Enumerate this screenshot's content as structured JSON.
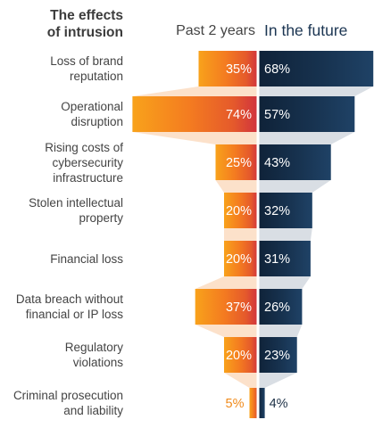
{
  "header": {
    "title": "The effects\nof intrusion",
    "left_label": "Past 2 years",
    "right_label": "In the future"
  },
  "colors": {
    "past_gradient": [
      "#f7a51c",
      "#f47d20",
      "#e9562b",
      "#d4323f"
    ],
    "future_gradient": [
      "#1e3f60",
      "#17324f",
      "#0c1f33"
    ],
    "funnel_left": "#fbd7b8",
    "funnel_right": "#c5ccd5",
    "divider": "#ffffff",
    "past_small_label": "#f08a1a"
  },
  "chart_data": {
    "type": "bar",
    "orientation": "horizontal-diverging",
    "categories": [
      "Loss of brand reputation",
      "Operational disruption",
      "Rising costs of cybersecurity infrastructure",
      "Stolen intellectual property",
      "Financial loss",
      "Data breach without financial or IP loss",
      "Regulatory violations",
      "Criminal prosecution and liability"
    ],
    "series": [
      {
        "name": "Past 2 years",
        "values": [
          35,
          74,
          25,
          20,
          20,
          37,
          20,
          5
        ]
      },
      {
        "name": "In the future",
        "values": [
          68,
          57,
          43,
          32,
          31,
          26,
          23,
          4
        ]
      }
    ],
    "labels": {
      "past": [
        "35%",
        "74%",
        "25%",
        "20%",
        "20%",
        "37%",
        "20%",
        "5%"
      ],
      "future": [
        "68%",
        "57%",
        "43%",
        "32%",
        "31%",
        "26%",
        "23%",
        "4%"
      ]
    },
    "category_labels": [
      "Loss of brand\nreputation",
      "Operational\ndisruption",
      "Rising costs of\ncybersecurity\ninfrastructure",
      "Stolen intellectual\nproperty",
      "Financial loss",
      "Data breach without\nfinancial or IP loss",
      "Regulatory\nviolations",
      "Criminal prosecution\nand liability"
    ]
  }
}
